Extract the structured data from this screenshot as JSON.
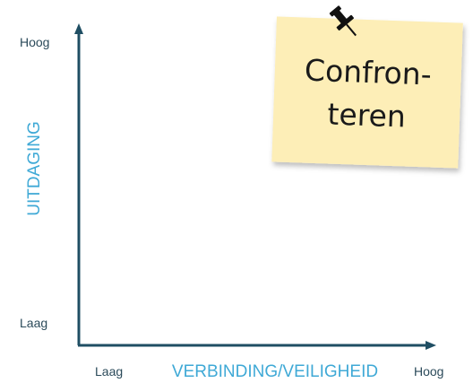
{
  "y_axis": {
    "label": "UITDAGING",
    "high": "Hoog",
    "low": "Laag"
  },
  "x_axis": {
    "label": "VERBINDING/VEILIGHEID",
    "low": "Laag",
    "high": "Hoog"
  },
  "note": {
    "lines": [
      "Confron-",
      "teren"
    ]
  }
}
